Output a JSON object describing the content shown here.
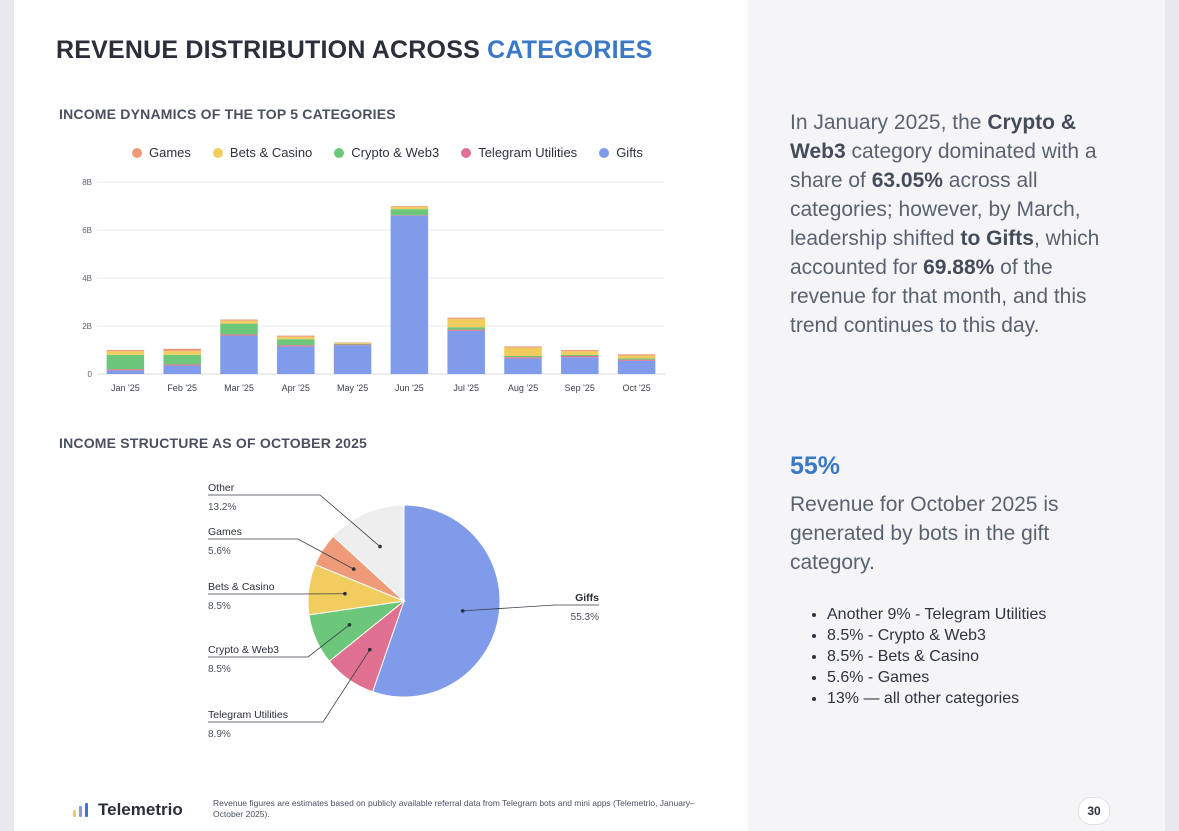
{
  "title": {
    "main": "REVENUE DISTRIBUTION ACROSS",
    "accent": "CATEGORIES"
  },
  "colors": {
    "Games": "#ef9b7a",
    "Bets & Casino": "#f0cd5e",
    "Crypto & Web3": "#6cc77a",
    "Telegram Utilities": "#e0708f",
    "Gifts": "#7f9be9",
    "Other": "#eeeeee",
    "accent": "#3a78c9"
  },
  "chart_data": [
    {
      "type": "bar",
      "stacked": true,
      "title": "INCOME DYNAMICS OF THE TOP 5 CATEGORIES",
      "categories": [
        "Jan '25",
        "Feb '25",
        "Mar '25",
        "Apr '25",
        "May '25",
        "Jun '25",
        "Jul '25",
        "Aug '25",
        "Sep '25",
        "Oct '25"
      ],
      "y_ticks": [
        "0",
        "2B",
        "4B",
        "6B",
        "8B"
      ],
      "ylim": [
        0,
        8
      ],
      "legend": "top",
      "grid": true,
      "series": [
        {
          "name": "Gifts",
          "values": [
            0.15,
            0.35,
            1.6,
            1.15,
            1.2,
            6.6,
            1.8,
            0.65,
            0.7,
            0.55
          ]
        },
        {
          "name": "Telegram Utilities",
          "values": [
            0.05,
            0.05,
            0.05,
            0.05,
            0.03,
            0.02,
            0.05,
            0.05,
            0.05,
            0.05
          ]
        },
        {
          "name": "Crypto & Web3",
          "values": [
            0.6,
            0.4,
            0.45,
            0.25,
            0.03,
            0.25,
            0.1,
            0.05,
            0.05,
            0.05
          ]
        },
        {
          "name": "Bets & Casino",
          "values": [
            0.15,
            0.15,
            0.12,
            0.1,
            0.03,
            0.1,
            0.35,
            0.35,
            0.15,
            0.12
          ]
        },
        {
          "name": "Games",
          "values": [
            0.05,
            0.1,
            0.05,
            0.05,
            0.02,
            0.03,
            0.05,
            0.05,
            0.05,
            0.05
          ]
        }
      ]
    },
    {
      "type": "pie",
      "title": "INCOME STRUCTURE AS OF OCTOBER 2025",
      "slices": [
        {
          "name": "Gifts",
          "label": "Giffs",
          "value": 55.3,
          "pct": "55.3%"
        },
        {
          "name": "Telegram Utilities",
          "label": "Telegram Utilities",
          "value": 8.9,
          "pct": "8.9%"
        },
        {
          "name": "Crypto & Web3",
          "label": "Crypto & Web3",
          "value": 8.5,
          "pct": "8.5%"
        },
        {
          "name": "Bets & Casino",
          "label": "Bets & Casino",
          "value": 8.5,
          "pct": "8.5%"
        },
        {
          "name": "Games",
          "label": "Games",
          "value": 5.6,
          "pct": "5.6%"
        },
        {
          "name": "Other",
          "label": "Other",
          "value": 13.2,
          "pct": "13.2%"
        }
      ]
    }
  ],
  "insight": {
    "p1": "In January 2025, the ",
    "b1": "Crypto & Web3",
    "p2": " category dominated with a share of ",
    "b2": "63.05%",
    "p3": " across all categories; however, by March, leadership shifted ",
    "b3": "to Gifts",
    "p4": ", which accounted for ",
    "b4": "69.88%",
    "p5": " of the revenue for that month, and this trend continues to this day."
  },
  "stat": {
    "value": "55%",
    "description": "Revenue for October 2025 is generated by bots in the gift category."
  },
  "bullets": [
    "Another 9% - Telegram Utilities",
    "8.5% - Crypto & Web3",
    "8.5% - Bets & Casino",
    "5.6% - Games",
    "13% — all other categories"
  ],
  "footer": {
    "logo": "Telemetrio",
    "note": "Revenue figures are estimates based on publicly available referral data from Telegram bots and mini apps (Telemetrio, January–October 2025).",
    "page": "30"
  }
}
